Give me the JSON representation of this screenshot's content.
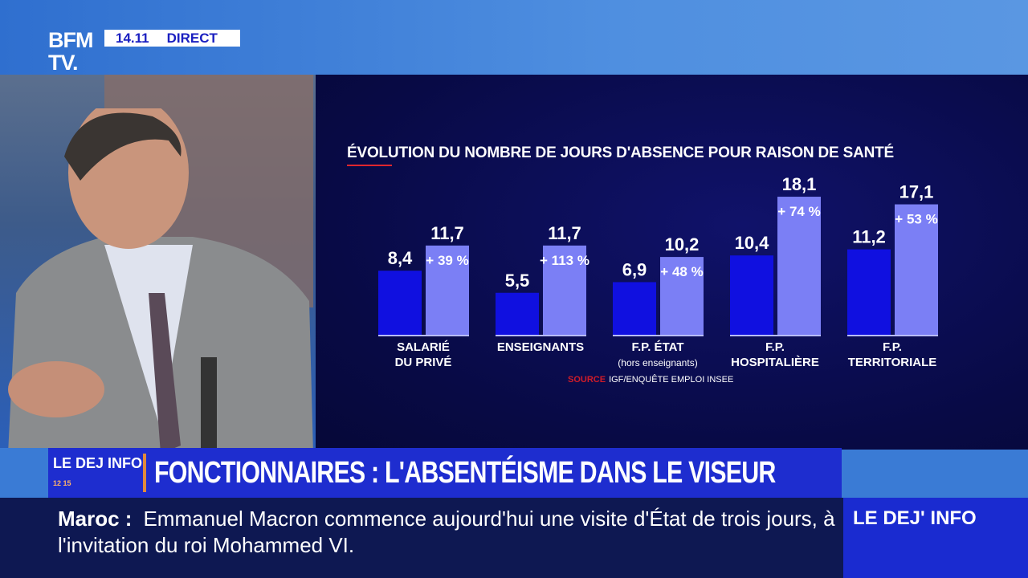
{
  "channel": {
    "logo": "BFM TV.",
    "time": "14.11",
    "live_label": "DIRECT"
  },
  "chart_data": {
    "type": "bar",
    "title": "ÉVOLUTION DU NOMBRE DE JOURS D'ABSENCE POUR RAISON DE SANTÉ",
    "categories": [
      "SALARIÉ DU PRIVÉ",
      "ENSEIGNANTS",
      "F.P. ÉTAT",
      "F.P. HOSPITALIÈRE",
      "F.P. TERRITORIALE"
    ],
    "category_notes": [
      "",
      "",
      "(hors enseignants)",
      "",
      ""
    ],
    "series": [
      {
        "values": [
          8.4,
          5.5,
          6.9,
          10.4,
          11.2
        ],
        "labels": [
          "8,4",
          "5,5",
          "6,9",
          "10,4",
          "11,2"
        ],
        "color": "#1010e0"
      },
      {
        "values": [
          11.7,
          11.7,
          10.2,
          18.1,
          17.1
        ],
        "labels": [
          "11,7",
          "11,7",
          "10,2",
          "18,1",
          "17,1"
        ],
        "color": "#7b7ff5"
      }
    ],
    "changes": [
      "+ 39 %",
      "+ 113 %",
      "+ 48 %",
      "+ 74 %",
      "+ 53 %"
    ],
    "source_label": "SOURCE",
    "source": "IGF/ENQUÊTE EMPLOI INSEE"
  },
  "headline": {
    "program": "LE DEJ INFO",
    "program_time": "12 15",
    "text": "FONCTIONNAIRES : L'ABSENTÉISME DANS LE VISEUR"
  },
  "ticker": {
    "topic": "Maroc :",
    "text": "Emmanuel Macron commence aujourd'hui une visite d'État de trois jours, à l'invitation du roi Mohammed VI.",
    "brand": "LE DEJ' INFO"
  }
}
